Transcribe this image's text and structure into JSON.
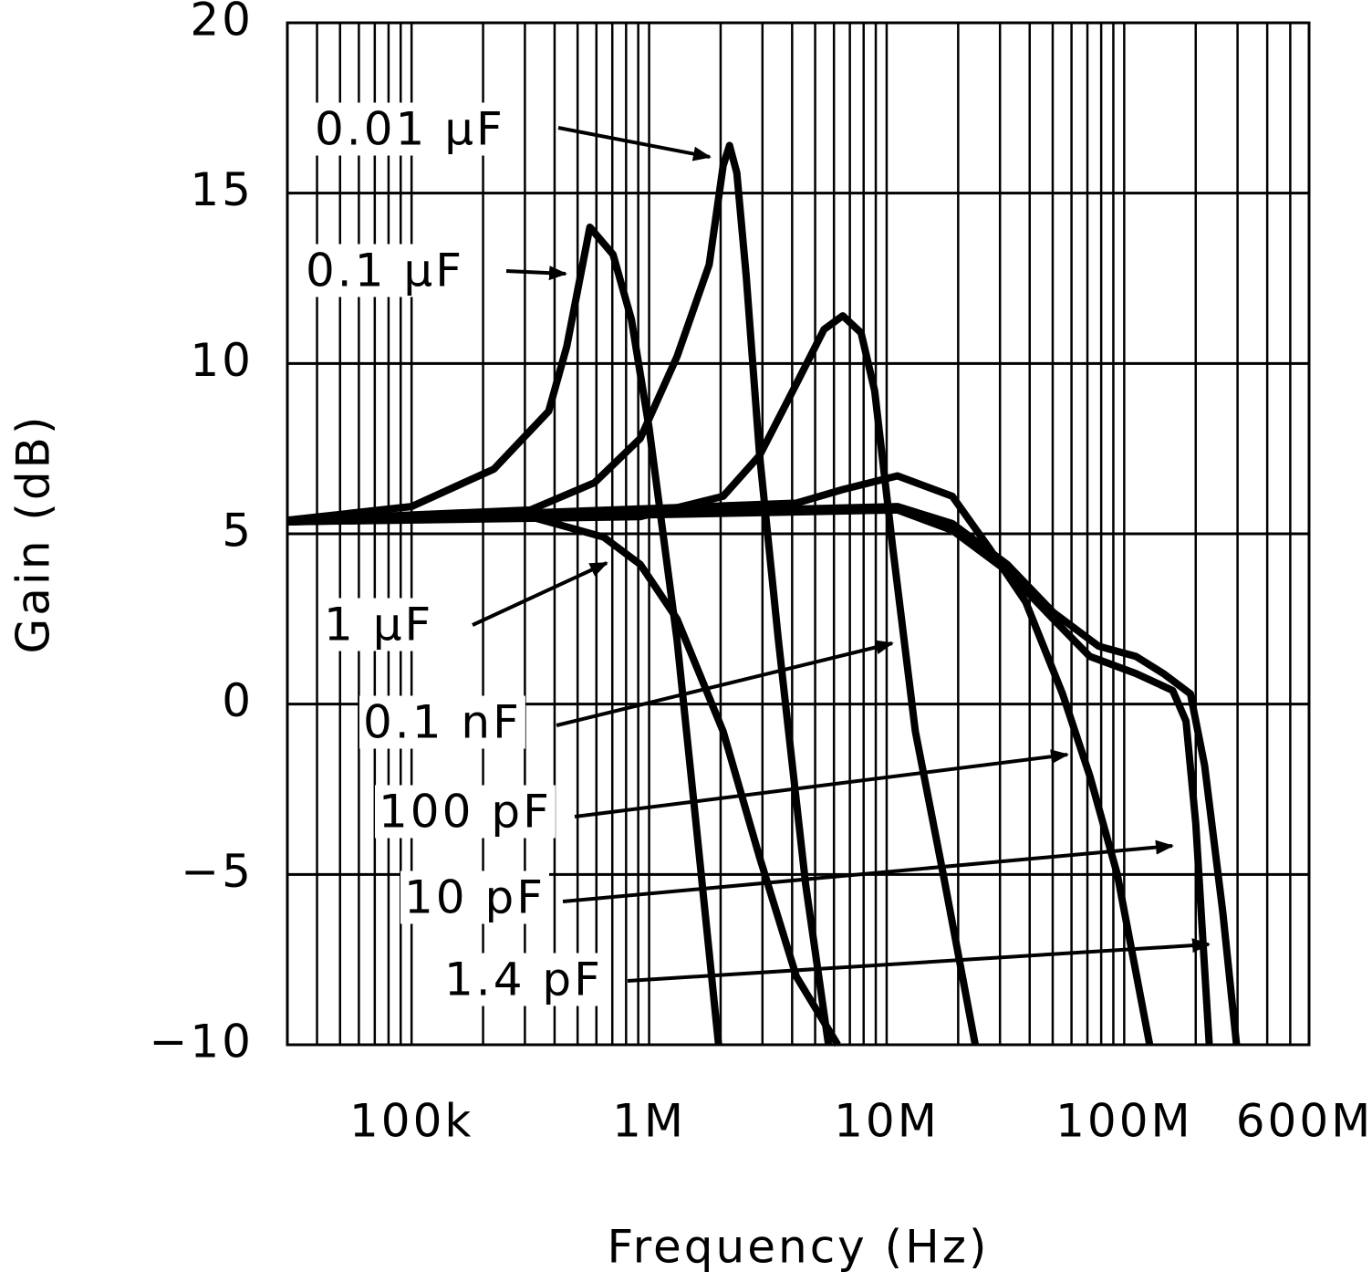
{
  "chart_data": {
    "type": "line",
    "x_label": "Frequency (Hz)",
    "y_label": "Gain (dB)",
    "xscale": "log",
    "xlim": [
      30000,
      600000000
    ],
    "ylim": [
      -10,
      20
    ],
    "yticks": [
      {
        "value": -10,
        "label": "−10"
      },
      {
        "value": -5,
        "label": "−5"
      },
      0,
      5,
      10,
      15,
      20
    ],
    "xticks": [
      {
        "value": 100000,
        "label": "100k"
      },
      {
        "value": 1000000,
        "label": "1M"
      },
      {
        "value": 10000000,
        "label": "10M"
      },
      {
        "value": 100000000,
        "label": "100M"
      },
      {
        "value": 600000000,
        "label": "600M"
      }
    ],
    "xgrid": [
      40000,
      50000,
      60000,
      70000,
      80000,
      90000,
      100000,
      200000,
      300000,
      400000,
      500000,
      600000,
      700000,
      800000,
      900000,
      1000000,
      2000000,
      3000000,
      4000000,
      5000000,
      6000000,
      7000000,
      8000000,
      9000000,
      10000000,
      20000000,
      30000000,
      40000000,
      50000000,
      60000000,
      70000000,
      80000000,
      90000000,
      100000000,
      200000000,
      300000000,
      400000000,
      500000000
    ],
    "grid": true,
    "series": [
      {
        "name": "0.01 μF",
        "color": "#000000",
        "x": [
          30000,
          316000,
          589000,
          918000,
          1310000,
          1790000,
          2050000,
          2180000,
          2340000,
          2560000,
          2920000,
          3500000,
          4560000,
          5690000
        ],
        "y": [
          5.4,
          5.7,
          6.5,
          7.8,
          10.2,
          12.9,
          15.8,
          16.4,
          15.6,
          12.6,
          7.3,
          1.9,
          -5.3,
          -10
        ]
      },
      {
        "name": "0.1 μF",
        "color": "#000000",
        "x": [
          30000,
          100000,
          222000,
          378000,
          450000,
          563000,
          705000,
          842000,
          1000000,
          1310000,
          1570000,
          1960000
        ],
        "y": [
          5.4,
          5.8,
          6.9,
          8.6,
          10.5,
          14.0,
          13.2,
          11.3,
          8.1,
          1.9,
          -3.4,
          -10
        ]
      },
      {
        "name": "1 μF",
        "color": "#000000",
        "x": [
          30000,
          316000,
          644000,
          918000,
          1310000,
          2050000,
          2920000,
          4170000,
          6220000
        ],
        "y": [
          5.35,
          5.5,
          4.9,
          4.1,
          2.5,
          -0.8,
          -4.5,
          -8.0,
          -10
        ]
      },
      {
        "name": "0.1 nF",
        "color": "#000000",
        "x": [
          30000,
          918000,
          2050000,
          2920000,
          4170000,
          5450000,
          6530000,
          7800000,
          8900000,
          10600000,
          13200000,
          17300000,
          23600000
        ],
        "y": [
          5.35,
          5.5,
          6.1,
          7.3,
          9.4,
          11.0,
          11.4,
          10.9,
          9.2,
          4.6,
          -0.8,
          -5.0,
          -10
        ]
      },
      {
        "name": "100 pF",
        "color": "#000000",
        "x": [
          30000,
          4170000,
          6530000,
          11100000,
          18900000,
          26900000,
          38500000,
          55000000,
          71600000,
          93500000,
          128000000
        ],
        "y": [
          5.35,
          5.9,
          6.3,
          6.7,
          6.1,
          4.6,
          3.0,
          0.3,
          -2.1,
          -5.0,
          -10
        ]
      },
      {
        "name": "10 pF",
        "color": "#000000",
        "x": [
          30000,
          11100000,
          18900000,
          32200000,
          50200000,
          71600000,
          112000000,
          160000000,
          182000000,
          200000000,
          228000000
        ],
        "y": [
          5.35,
          5.7,
          5.1,
          3.9,
          2.5,
          1.4,
          0.9,
          0.4,
          -0.5,
          -3.5,
          -10
        ]
      },
      {
        "name": "1.4 pF",
        "color": "#000000",
        "x": [
          30000,
          11100000,
          18900000,
          32200000,
          50200000,
          78000000,
          112000000,
          146000000,
          190000000,
          218000000,
          260000000,
          297000000
        ],
        "y": [
          5.35,
          5.8,
          5.3,
          4.1,
          2.7,
          1.7,
          1.4,
          0.9,
          0.3,
          -1.8,
          -6.1,
          -10
        ]
      }
    ]
  }
}
